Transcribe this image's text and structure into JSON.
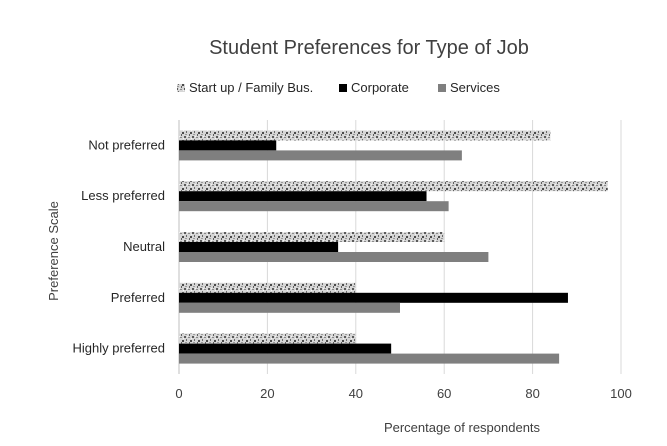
{
  "chart_data": {
    "type": "bar",
    "orientation": "horizontal",
    "title": "Student Preferences for Type of Job",
    "xlabel": "Percentage of respondents",
    "ylabel": "Preference  Scale",
    "xlim": [
      0,
      100
    ],
    "xticks": [
      "0",
      "20",
      "40",
      "60",
      "80",
      "100"
    ],
    "grid": true,
    "legend_position": "top",
    "categories": [
      "Not preferred",
      "Less preferred",
      "Neutral",
      "Preferred",
      "Highly preferred"
    ],
    "series": [
      {
        "name": "Start up / Family Bus.",
        "color": "#b0b0b0",
        "fill": "speckled-pattern",
        "values": [
          84,
          97,
          60,
          40,
          40
        ]
      },
      {
        "name": "Corporate",
        "color": "#000000",
        "fill": "solid",
        "values": [
          22,
          56,
          36,
          88,
          48
        ]
      },
      {
        "name": "Services",
        "color": "#7f7f7f",
        "fill": "solid",
        "values": [
          64,
          61,
          70,
          50,
          86
        ]
      }
    ]
  }
}
